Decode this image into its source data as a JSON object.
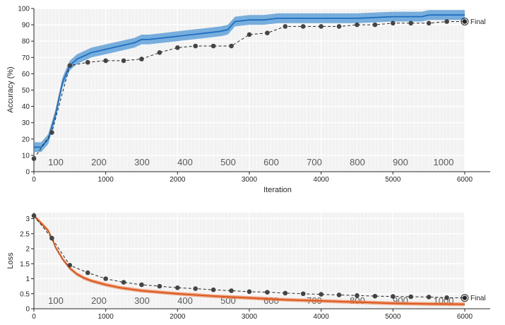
{
  "chart_data": [
    {
      "type": "line",
      "xlabel": "Iteration",
      "ylabel": "Accuracy (%)",
      "xlim": [
        0,
        6000
      ],
      "ylim": [
        0,
        100
      ],
      "x_ticks": [
        "0",
        "1000",
        "2000",
        "3000",
        "4000",
        "5000",
        "6000"
      ],
      "y_ticks": [
        "0",
        "10",
        "20",
        "30",
        "40",
        "50",
        "60",
        "70",
        "80",
        "90",
        "100"
      ],
      "epoch_labels": [
        "100",
        "200",
        "300",
        "400",
        "500",
        "600",
        "700",
        "800",
        "900",
        "1000"
      ],
      "grid": true,
      "final_label": "Final",
      "colors": {
        "training": "#1f6fc0",
        "training_band": "#4d95d6",
        "validation": "#262626",
        "axes_bg": "#f2f2f2"
      },
      "series": [
        {
          "role": "training",
          "x": [
            0,
            100,
            200,
            300,
            400,
            500,
            600,
            700,
            800,
            900,
            1000,
            1200,
            1400,
            1500,
            1600,
            1800,
            2000,
            2200,
            2400,
            2600,
            2700,
            2800,
            3000,
            3200,
            3400,
            3600,
            3800,
            4000,
            4500,
            5000,
            5400,
            5500,
            5800,
            6000
          ],
          "values": [
            15,
            15,
            20,
            35,
            55,
            65,
            69,
            71,
            73,
            74,
            75,
            77,
            79,
            81,
            81,
            82,
            83,
            84,
            85,
            86,
            87,
            92,
            93,
            93,
            94,
            94,
            94,
            94,
            94,
            95,
            95,
            96,
            96,
            96
          ]
        },
        {
          "role": "validation",
          "x": [
            0,
            250,
            500,
            750,
            1000,
            1250,
            1500,
            1750,
            2000,
            2250,
            2500,
            2750,
            3000,
            3250,
            3500,
            3750,
            4000,
            4250,
            4500,
            4750,
            5000,
            5250,
            5500,
            5750,
            6000
          ],
          "values": [
            8,
            24,
            65,
            67,
            68,
            68,
            69,
            73,
            76,
            77,
            77,
            77,
            84,
            85,
            89,
            89,
            89,
            89,
            90,
            90,
            91,
            91,
            91,
            92,
            92
          ]
        }
      ]
    },
    {
      "type": "line",
      "xlabel": "",
      "ylabel": "Loss",
      "xlim": [
        0,
        6000
      ],
      "ylim": [
        0,
        3.2
      ],
      "x_ticks": [
        "0",
        "1000",
        "2000",
        "3000",
        "4000",
        "5000",
        "6000"
      ],
      "y_ticks": [
        "0",
        "0.5",
        "1",
        "1.5",
        "2",
        "2.5",
        "3"
      ],
      "epoch_labels": [
        "100",
        "200",
        "300",
        "400",
        "500",
        "600",
        "700",
        "800",
        "900",
        "1000"
      ],
      "grid": true,
      "final_label": "Final",
      "colors": {
        "training": "#d9541a",
        "training_band": "#ec8a5a",
        "validation": "#262626",
        "axes_bg": "#f2f2f2"
      },
      "series": [
        {
          "role": "training",
          "x": [
            0,
            100,
            200,
            250,
            300,
            400,
            500,
            600,
            700,
            800,
            1000,
            1200,
            1500,
            2000,
            2500,
            3000,
            3500,
            4000,
            4500,
            5000,
            5500,
            6000
          ],
          "values": [
            3.1,
            2.85,
            2.6,
            2.35,
            2.05,
            1.65,
            1.35,
            1.15,
            1.02,
            0.93,
            0.8,
            0.7,
            0.6,
            0.5,
            0.42,
            0.36,
            0.3,
            0.26,
            0.22,
            0.18,
            0.16,
            0.15
          ]
        },
        {
          "role": "validation",
          "x": [
            0,
            250,
            500,
            750,
            1000,
            1250,
            1500,
            1750,
            2000,
            2250,
            2500,
            2750,
            3000,
            3250,
            3500,
            3750,
            4000,
            4250,
            4500,
            4750,
            5000,
            5250,
            5500,
            5750,
            6000
          ],
          "values": [
            3.1,
            2.35,
            1.45,
            1.2,
            1.0,
            0.88,
            0.8,
            0.75,
            0.7,
            0.67,
            0.63,
            0.6,
            0.57,
            0.55,
            0.52,
            0.5,
            0.48,
            0.46,
            0.44,
            0.42,
            0.41,
            0.4,
            0.39,
            0.37,
            0.36
          ]
        }
      ]
    }
  ]
}
